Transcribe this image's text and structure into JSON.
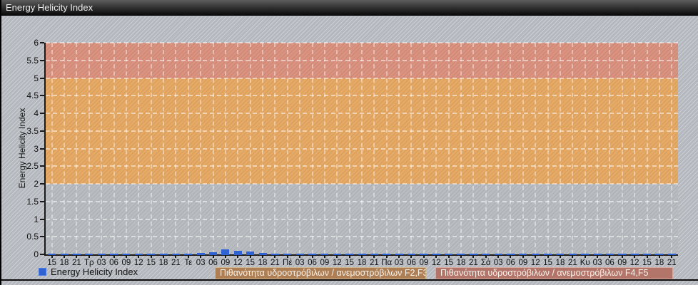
{
  "window": {
    "title": "Energy Helicity Index"
  },
  "chart_data": {
    "type": "bar",
    "title": "Energy Helicity Index",
    "xlabel": "",
    "ylabel": "Energy Helicity Index",
    "ylim": [
      0,
      6
    ],
    "ytick_step": 0.5,
    "grid": true,
    "legend_position": "bottom-left",
    "categories": [
      "15",
      "18",
      "21",
      "Τρ",
      "03",
      "06",
      "09",
      "12",
      "15",
      "18",
      "21",
      "Τε",
      "03",
      "06",
      "09",
      "12",
      "15",
      "18",
      "21",
      "Πέ",
      "03",
      "06",
      "09",
      "12",
      "15",
      "18",
      "21",
      "Πα",
      "03",
      "06",
      "09",
      "12",
      "15",
      "18",
      "21",
      "Σά",
      "03",
      "06",
      "09",
      "12",
      "15",
      "18",
      "21",
      "Κυ",
      "03",
      "06",
      "09",
      "12",
      "15",
      "18",
      "21"
    ],
    "series": [
      {
        "name": "Energy Helicity Index",
        "color": "#2f62d2",
        "values": [
          0.02,
          0.02,
          0.02,
          0.02,
          0.02,
          0.02,
          0.02,
          0.03,
          0.02,
          0.04,
          0.04,
          0.03,
          0.06,
          0.08,
          0.16,
          0.12,
          0.1,
          0.07,
          0.05,
          0.03,
          0.02,
          0.02,
          0.02,
          0.02,
          0.02,
          0.02,
          0.02,
          0.02,
          0.02,
          0.02,
          0.02,
          0.02,
          0.02,
          0.02,
          0.02,
          0.02,
          0.02,
          0.03,
          0.03,
          0.04,
          0.03,
          0.02,
          0.02,
          0.02,
          0.02,
          0.02,
          0.02,
          0.03,
          0.02,
          0.02,
          0.02
        ]
      }
    ],
    "bands": [
      {
        "name": "ehi-low",
        "from": 0,
        "to": 2,
        "color": "#b5b8bd",
        "label": ""
      },
      {
        "name": "tornado-f2f3",
        "from": 2,
        "to": 5,
        "color": "#e5a55f",
        "label": "Πιθανότητα υδροστρόβιλων / ανεμοστρόβιλων F2,F3",
        "label_bg": "#ae7e55",
        "label_border": "#d2b68f"
      },
      {
        "name": "tornado-f4f5",
        "from": 5,
        "to": 6,
        "color": "#d88d7a",
        "label": "Πιθανότητα υδροστρόβιλων / ανεμοστρόβιλων F4,F5",
        "label_bg": "#b3746a",
        "label_border": "#d6aca1"
      }
    ]
  }
}
